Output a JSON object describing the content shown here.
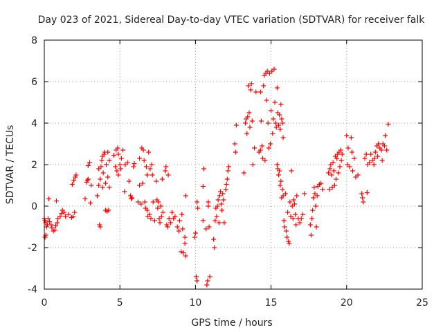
{
  "chart_data": {
    "type": "scatter",
    "title": "Day 023 of 2021, Sidereal Day-to-day VTEC variation (SDTVAR) for receiver falk",
    "xlabel": "GPS time / hours",
    "ylabel": "SDTVAR / TECUs",
    "xlim": [
      0,
      25
    ],
    "ylim": [
      -4,
      8
    ],
    "xticks": [
      0,
      5,
      10,
      15,
      20,
      25
    ],
    "yticks": [
      -4,
      -2,
      0,
      2,
      4,
      6,
      8
    ],
    "grid": true,
    "marker": "+",
    "color": "#ff0000",
    "series": [
      {
        "name": "SDTVAR",
        "points": [
          [
            0.0,
            -0.6
          ],
          [
            0.05,
            -0.7
          ],
          [
            0.1,
            -0.8
          ],
          [
            0.15,
            -1.0
          ],
          [
            0.05,
            -1.5
          ],
          [
            0.1,
            -1.4
          ],
          [
            0.2,
            -0.9
          ],
          [
            0.25,
            -0.6
          ],
          [
            0.3,
            0.35
          ],
          [
            0.35,
            -0.75
          ],
          [
            0.45,
            -0.9
          ],
          [
            0.5,
            -1.05
          ],
          [
            0.6,
            -1.2
          ],
          [
            0.7,
            -1.15
          ],
          [
            0.75,
            -0.95
          ],
          [
            0.8,
            0.25
          ],
          [
            0.85,
            -0.8
          ],
          [
            0.9,
            -0.6
          ],
          [
            1.05,
            -0.5
          ],
          [
            1.15,
            -0.35
          ],
          [
            1.2,
            -0.2
          ],
          [
            1.3,
            -0.3
          ],
          [
            1.4,
            -0.5
          ],
          [
            1.6,
            -0.4
          ],
          [
            1.8,
            -0.55
          ],
          [
            1.9,
            -0.5
          ],
          [
            2.0,
            -0.3
          ],
          [
            1.85,
            1.05
          ],
          [
            1.95,
            1.25
          ],
          [
            2.05,
            1.4
          ],
          [
            2.1,
            1.5
          ],
          [
            2.7,
            0.35
          ],
          [
            2.8,
            1.15
          ],
          [
            2.85,
            1.25
          ],
          [
            2.9,
            1.3
          ],
          [
            2.9,
            1.95
          ],
          [
            3.0,
            2.1
          ],
          [
            3.05,
            0.15
          ],
          [
            3.1,
            1.0
          ],
          [
            3.5,
            0.5
          ],
          [
            3.6,
            1.0
          ],
          [
            3.6,
            1.8
          ],
          [
            3.65,
            -0.9
          ],
          [
            3.7,
            -1.0
          ],
          [
            3.7,
            1.3
          ],
          [
            3.75,
            1.9
          ],
          [
            3.8,
            2.2
          ],
          [
            3.85,
            2.4
          ],
          [
            3.85,
            0.9
          ],
          [
            3.9,
            1.6
          ],
          [
            3.95,
            2.5
          ],
          [
            4.0,
            2.6
          ],
          [
            4.05,
            -0.2
          ],
          [
            4.05,
            1.1
          ],
          [
            4.1,
            2.0
          ],
          [
            4.15,
            -0.25
          ],
          [
            4.2,
            1.4
          ],
          [
            4.2,
            2.6
          ],
          [
            4.25,
            -0.2
          ],
          [
            4.3,
            0.9
          ],
          [
            4.3,
            2.2
          ],
          [
            4.6,
            2.45
          ],
          [
            4.7,
            1.9
          ],
          [
            4.75,
            2.7
          ],
          [
            4.8,
            1.7
          ],
          [
            4.85,
            2.8
          ],
          [
            4.9,
            2.5
          ],
          [
            4.9,
            1.5
          ],
          [
            5.0,
            2.0
          ],
          [
            5.05,
            1.8
          ],
          [
            5.1,
            2.3
          ],
          [
            5.2,
            2.7
          ],
          [
            5.3,
            0.7
          ],
          [
            5.35,
            2.0
          ],
          [
            5.5,
            2.1
          ],
          [
            5.6,
            1.2
          ],
          [
            5.7,
            0.5
          ],
          [
            5.75,
            0.35
          ],
          [
            5.8,
            0.4
          ],
          [
            5.9,
            1.9
          ],
          [
            5.95,
            2.05
          ],
          [
            6.2,
            0.2
          ],
          [
            6.3,
            1.0
          ],
          [
            6.3,
            2.3
          ],
          [
            6.4,
            0.1
          ],
          [
            6.45,
            2.8
          ],
          [
            6.5,
            1.1
          ],
          [
            6.55,
            2.7
          ],
          [
            6.6,
            2.2
          ],
          [
            6.65,
            0.2
          ],
          [
            6.7,
            -0.1
          ],
          [
            6.75,
            1.9
          ],
          [
            6.8,
            -0.2
          ],
          [
            6.8,
            1.5
          ],
          [
            6.85,
            -0.5
          ],
          [
            6.9,
            2.6
          ],
          [
            6.95,
            -0.4
          ],
          [
            7.0,
            1.8
          ],
          [
            7.05,
            -0.6
          ],
          [
            7.1,
            2.0
          ],
          [
            7.15,
            1.5
          ],
          [
            7.2,
            0.2
          ],
          [
            7.3,
            -0.7
          ],
          [
            7.4,
            1.2
          ],
          [
            7.45,
            0.3
          ],
          [
            7.5,
            -0.1
          ],
          [
            7.55,
            0.2
          ],
          [
            7.6,
            -0.6
          ],
          [
            7.65,
            -0.8
          ],
          [
            7.7,
            0.0
          ],
          [
            7.75,
            -0.5
          ],
          [
            7.8,
            1.3
          ],
          [
            7.85,
            -0.3
          ],
          [
            8.0,
            1.7
          ],
          [
            8.05,
            1.9
          ],
          [
            8.1,
            -0.9
          ],
          [
            8.15,
            -1.0
          ],
          [
            8.2,
            1.5
          ],
          [
            8.25,
            -0.6
          ],
          [
            8.35,
            -0.8
          ],
          [
            8.45,
            -0.3
          ],
          [
            8.55,
            -0.6
          ],
          [
            8.65,
            -0.5
          ],
          [
            8.8,
            -1.0
          ],
          [
            8.9,
            -1.2
          ],
          [
            8.95,
            -0.7
          ],
          [
            9.05,
            -2.2
          ],
          [
            9.1,
            -0.4
          ],
          [
            9.15,
            -1.1
          ],
          [
            9.2,
            -2.25
          ],
          [
            9.3,
            -1.8
          ],
          [
            9.3,
            -1.5
          ],
          [
            9.35,
            0.5
          ],
          [
            9.35,
            -2.4
          ],
          [
            9.95,
            -1.5
          ],
          [
            10.0,
            -1.3
          ],
          [
            10.05,
            -3.4
          ],
          [
            10.1,
            -3.6
          ],
          [
            10.1,
            0.2
          ],
          [
            10.15,
            -0.1
          ],
          [
            10.5,
            -0.7
          ],
          [
            10.5,
            0.95
          ],
          [
            10.55,
            1.8
          ],
          [
            10.7,
            -1.1
          ],
          [
            10.75,
            -3.8
          ],
          [
            10.8,
            -3.6
          ],
          [
            10.85,
            0.0
          ],
          [
            10.85,
            0.2
          ],
          [
            10.9,
            -1.0
          ],
          [
            10.95,
            -3.4
          ],
          [
            11.2,
            -1.6
          ],
          [
            11.25,
            -2.0
          ],
          [
            11.3,
            -0.7
          ],
          [
            11.35,
            -0.1
          ],
          [
            11.4,
            -0.5
          ],
          [
            11.45,
            0.0
          ],
          [
            11.5,
            0.3
          ],
          [
            11.55,
            -0.8
          ],
          [
            11.6,
            0.5
          ],
          [
            11.65,
            0.7
          ],
          [
            11.7,
            0.1
          ],
          [
            11.75,
            -0.2
          ],
          [
            11.8,
            0.6
          ],
          [
            11.85,
            0.3
          ],
          [
            11.9,
            -0.8
          ],
          [
            12.0,
            0.8
          ],
          [
            12.05,
            1.05
          ],
          [
            12.1,
            1.3
          ],
          [
            12.15,
            1.7
          ],
          [
            12.2,
            1.9
          ],
          [
            12.6,
            3.0
          ],
          [
            12.65,
            2.6
          ],
          [
            12.7,
            3.9
          ],
          [
            13.2,
            1.6
          ],
          [
            13.3,
            4.0
          ],
          [
            13.35,
            4.2
          ],
          [
            13.4,
            3.5
          ],
          [
            13.45,
            4.3
          ],
          [
            13.5,
            5.8
          ],
          [
            13.55,
            4.5
          ],
          [
            13.6,
            3.8
          ],
          [
            13.65,
            5.6
          ],
          [
            13.7,
            5.9
          ],
          [
            13.75,
            4.1
          ],
          [
            13.8,
            2.0
          ],
          [
            13.9,
            2.8
          ],
          [
            14.0,
            5.5
          ],
          [
            14.2,
            2.6
          ],
          [
            14.3,
            2.7
          ],
          [
            14.3,
            5.5
          ],
          [
            14.35,
            4.1
          ],
          [
            14.4,
            2.9
          ],
          [
            14.45,
            2.3
          ],
          [
            14.5,
            5.8
          ],
          [
            14.55,
            6.3
          ],
          [
            14.6,
            2.2
          ],
          [
            14.65,
            6.4
          ],
          [
            14.7,
            5.1
          ],
          [
            14.75,
            6.5
          ],
          [
            14.8,
            4.0
          ],
          [
            14.85,
            2.8
          ],
          [
            14.9,
            6.4
          ],
          [
            14.95,
            3.0
          ],
          [
            15.0,
            4.6
          ],
          [
            15.05,
            6.5
          ],
          [
            15.1,
            3.5
          ],
          [
            15.15,
            4.2
          ],
          [
            15.2,
            6.6
          ],
          [
            15.25,
            5.0
          ],
          [
            15.3,
            4.0
          ],
          [
            15.35,
            3.8
          ],
          [
            15.4,
            5.7
          ],
          [
            15.45,
            4.5
          ],
          [
            15.5,
            3.9
          ],
          [
            15.55,
            4.4
          ],
          [
            15.6,
            3.7
          ],
          [
            15.65,
            4.9
          ],
          [
            15.7,
            4.2
          ],
          [
            15.75,
            4.0
          ],
          [
            15.8,
            3.3
          ],
          [
            15.4,
            2.0
          ],
          [
            15.45,
            1.8
          ],
          [
            15.5,
            1.5
          ],
          [
            15.55,
            1.7
          ],
          [
            15.6,
            1.0
          ],
          [
            15.65,
            1.2
          ],
          [
            15.7,
            0.4
          ],
          [
            15.75,
            0.8
          ],
          [
            15.8,
            0.5
          ],
          [
            15.85,
            -0.7
          ],
          [
            15.9,
            -1.0
          ],
          [
            15.95,
            0.6
          ],
          [
            16.0,
            -1.2
          ],
          [
            16.05,
            -1.5
          ],
          [
            16.1,
            -0.3
          ],
          [
            16.15,
            -1.7
          ],
          [
            16.2,
            -1.8
          ],
          [
            16.25,
            0.2
          ],
          [
            16.3,
            -0.5
          ],
          [
            16.35,
            1.7
          ],
          [
            16.4,
            0.0
          ],
          [
            16.45,
            -0.6
          ],
          [
            16.5,
            0.3
          ],
          [
            16.55,
            0.1
          ],
          [
            16.6,
            -0.4
          ],
          [
            16.65,
            -0.9
          ],
          [
            16.7,
            0.5
          ],
          [
            16.8,
            -0.6
          ],
          [
            16.9,
            -0.8
          ],
          [
            17.0,
            -0.6
          ],
          [
            17.1,
            -0.4
          ],
          [
            17.2,
            0.6
          ],
          [
            17.6,
            -0.9
          ],
          [
            17.65,
            -1.4
          ],
          [
            17.7,
            -0.6
          ],
          [
            17.75,
            -0.2
          ],
          [
            17.8,
            0.4
          ],
          [
            17.85,
            0.9
          ],
          [
            17.9,
            0.6
          ],
          [
            17.95,
            0.0
          ],
          [
            18.0,
            -1.0
          ],
          [
            18.05,
            0.5
          ],
          [
            18.1,
            0.95
          ],
          [
            18.2,
            1.05
          ],
          [
            18.3,
            1.1
          ],
          [
            18.4,
            0.8
          ],
          [
            18.8,
            1.6
          ],
          [
            18.85,
            0.8
          ],
          [
            18.9,
            1.8
          ],
          [
            18.95,
            2.0
          ],
          [
            19.0,
            1.5
          ],
          [
            19.05,
            0.9
          ],
          [
            19.1,
            2.1
          ],
          [
            19.15,
            1.7
          ],
          [
            19.2,
            1.0
          ],
          [
            19.25,
            2.4
          ],
          [
            19.3,
            1.3
          ],
          [
            19.35,
            2.3
          ],
          [
            19.4,
            2.5
          ],
          [
            19.45,
            1.6
          ],
          [
            19.5,
            2.6
          ],
          [
            19.55,
            1.9
          ],
          [
            19.6,
            2.7
          ],
          [
            19.65,
            2.2
          ],
          [
            19.7,
            2.5
          ],
          [
            20.0,
            3.4
          ],
          [
            20.05,
            2.0
          ],
          [
            20.1,
            2.8
          ],
          [
            20.2,
            1.9
          ],
          [
            20.3,
            3.3
          ],
          [
            20.35,
            2.6
          ],
          [
            20.4,
            1.7
          ],
          [
            20.5,
            2.3
          ],
          [
            20.6,
            1.4
          ],
          [
            20.75,
            1.5
          ],
          [
            21.0,
            0.6
          ],
          [
            21.05,
            0.4
          ],
          [
            21.1,
            0.2
          ],
          [
            21.2,
            2.3
          ],
          [
            21.3,
            2.5
          ],
          [
            21.35,
            0.65
          ],
          [
            21.4,
            2.0
          ],
          [
            21.5,
            2.1
          ],
          [
            21.6,
            2.5
          ],
          [
            21.7,
            2.2
          ],
          [
            21.8,
            2.0
          ],
          [
            21.85,
            2.3
          ],
          [
            21.9,
            2.6
          ],
          [
            22.0,
            2.9
          ],
          [
            22.05,
            2.4
          ],
          [
            22.1,
            3.0
          ],
          [
            22.2,
            2.8
          ],
          [
            22.3,
            2.7
          ],
          [
            22.35,
            2.2
          ],
          [
            22.4,
            3.0
          ],
          [
            22.5,
            2.9
          ],
          [
            22.55,
            3.4
          ],
          [
            22.65,
            2.7
          ],
          [
            22.75,
            3.95
          ]
        ]
      }
    ]
  }
}
